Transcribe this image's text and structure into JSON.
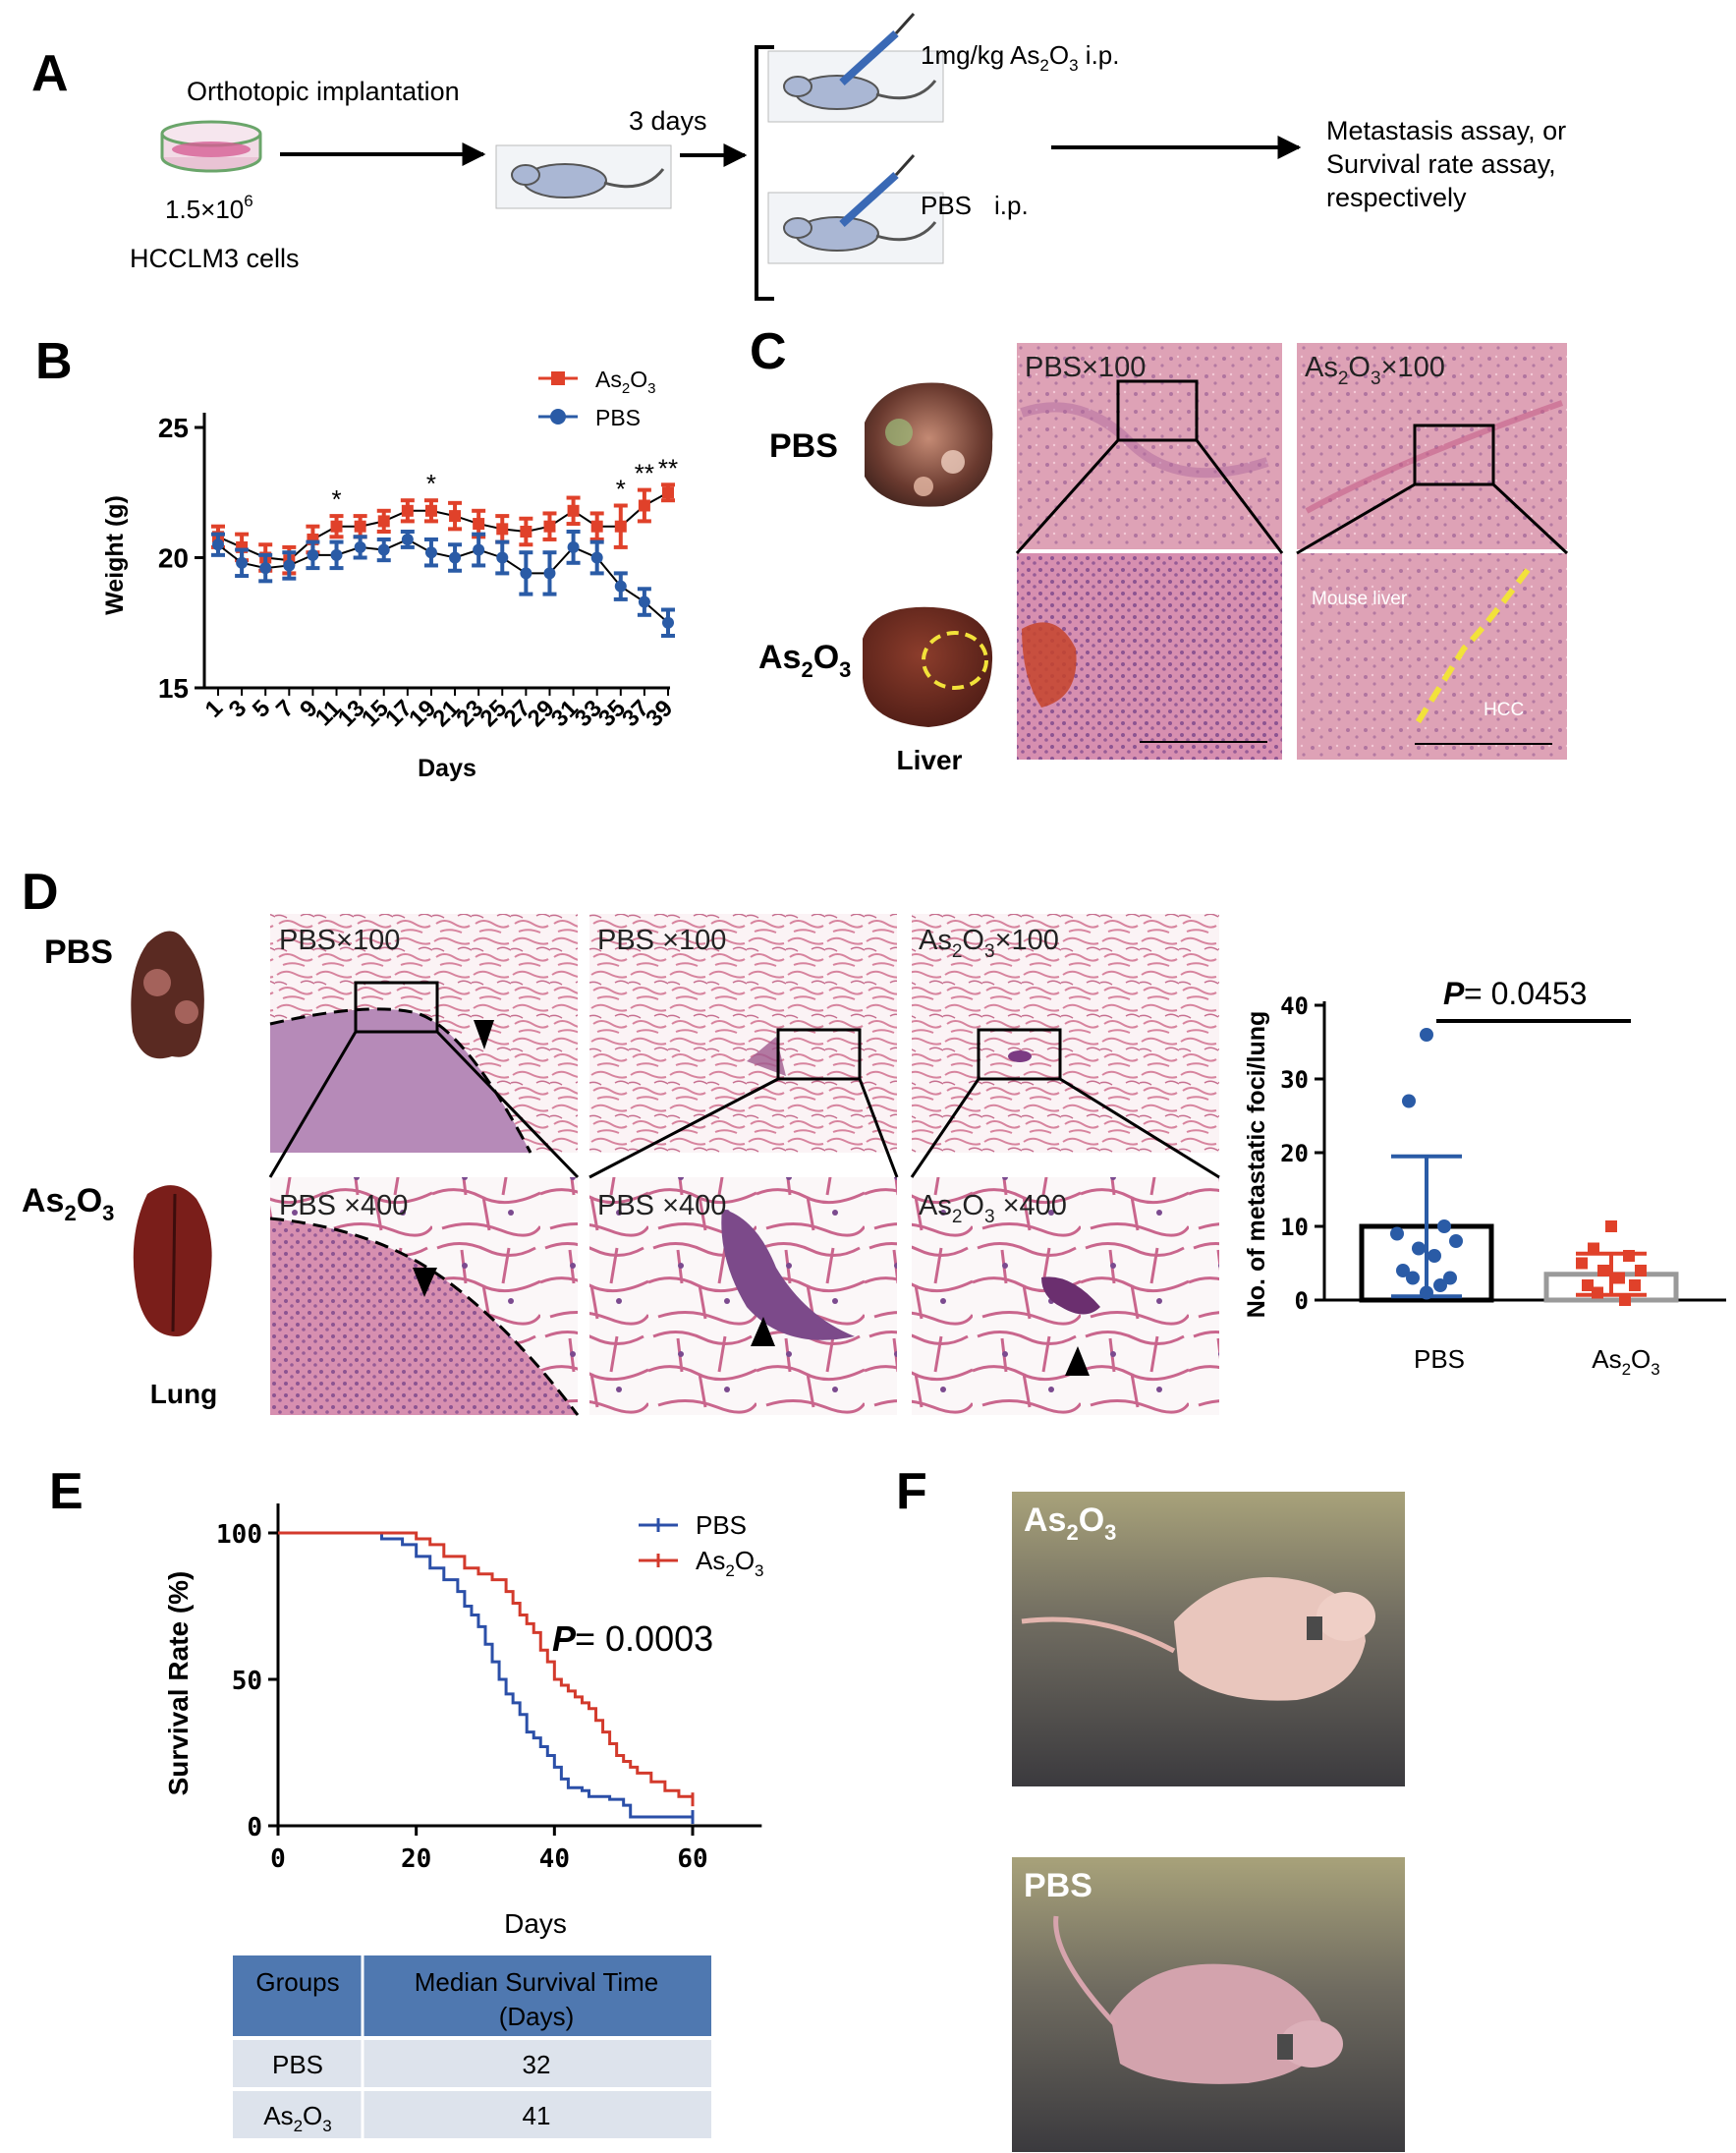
{
  "panel_labels": {
    "a": "A",
    "b": "B",
    "c": "C",
    "d": "D",
    "e": "E",
    "f": "F"
  },
  "panel_a": {
    "implantation": "Orthotopic implantation",
    "cells_count_base": "1.5×10",
    "cells_count_exp": "6",
    "cells_name": "HCCLM3 cells",
    "days": "3 days",
    "treat_dose": "1mg/kg As",
    "treat_route": " i.p.",
    "pbs_label": "PBS",
    "pbs_route": "i.p.",
    "outcome_lines": [
      "Metastasis assay, or",
      "Survival rate assay,",
      "respectively"
    ]
  },
  "panel_b": {
    "legend_as_base": "As",
    "legend_pbs": "PBS",
    "ylabel": "Weight (g)",
    "xlabel": "Days"
  },
  "panel_c": {
    "row_pbs": "PBS",
    "row_as_base": "As",
    "caption": "Liver",
    "label_pbs_100": "PBS×100",
    "label_as_100": "×100",
    "mouse_liver": "Mouse liver",
    "hcc": "HCC"
  },
  "panel_d": {
    "row_pbs": "PBS",
    "row_as_base": "As",
    "caption": "Lung",
    "micro_labels": [
      "PBS×100",
      "PBS ×100",
      "×100",
      "PBS ×400",
      "PBS ×400",
      " ×400"
    ],
    "p_prefix": "P",
    "p_value": " = 0.0453",
    "ylabel": "No. of metastatic foci/lung",
    "cat_pbs": "PBS",
    "cat_as_base": "As"
  },
  "panel_e": {
    "legend_pbs": "PBS",
    "legend_as_base": "As",
    "p_prefix": "P",
    "p_value": " = 0.0003",
    "ylabel": "Survival Rate (%)",
    "xlabel": "Days",
    "table": {
      "headers": [
        "Groups",
        "Median Survival Time",
        "(Days)"
      ],
      "rows": [
        {
          "group": "PBS",
          "value": "32"
        },
        {
          "group": "As",
          "value": "41"
        }
      ]
    }
  },
  "panel_f": {
    "label_as_base": "As",
    "label_pbs": "PBS"
  },
  "colors": {
    "pbs": "#2a5ba6",
    "as2o3": "#e0412a",
    "survival_pbs": "#2b4fa8",
    "survival_as": "#d33a2c",
    "table_header": "#4f78b0",
    "table_row": "#dde3ec"
  },
  "chart_data": [
    {
      "type": "line",
      "panel": "B",
      "title": "",
      "xlabel": "Days",
      "ylabel": "Weight (g)",
      "x": [
        1,
        3,
        5,
        7,
        9,
        11,
        13,
        15,
        17,
        19,
        21,
        23,
        25,
        27,
        29,
        31,
        33,
        35,
        37,
        39
      ],
      "x_tick_labels": [
        "1",
        "3",
        "5",
        "7",
        "9",
        "11",
        "13",
        "15",
        "17",
        "19",
        "21",
        "23",
        "25",
        "27",
        "29",
        "31",
        "33",
        "35",
        "37",
        "39"
      ],
      "ylim": [
        15,
        25
      ],
      "y_ticks": [
        15,
        20,
        25
      ],
      "legend": "top-right",
      "series": [
        {
          "name": "As2O3",
          "values": [
            20.8,
            20.4,
            20.0,
            19.9,
            20.7,
            21.2,
            21.2,
            21.4,
            21.8,
            21.8,
            21.6,
            21.3,
            21.1,
            21.0,
            21.2,
            21.8,
            21.2,
            21.2,
            22.0,
            22.5
          ],
          "error": [
            0.4,
            0.5,
            0.5,
            0.5,
            0.5,
            0.4,
            0.4,
            0.4,
            0.4,
            0.4,
            0.5,
            0.5,
            0.5,
            0.5,
            0.5,
            0.5,
            0.5,
            0.8,
            0.6,
            0.3
          ]
        },
        {
          "name": "PBS",
          "values": [
            20.5,
            19.8,
            19.6,
            19.7,
            20.1,
            20.1,
            20.4,
            20.3,
            20.7,
            20.2,
            20.0,
            20.3,
            20.0,
            19.4,
            19.4,
            20.4,
            20.0,
            18.9,
            18.3,
            17.5
          ],
          "error": [
            0.4,
            0.5,
            0.5,
            0.5,
            0.5,
            0.5,
            0.4,
            0.4,
            0.3,
            0.5,
            0.5,
            0.6,
            0.6,
            0.8,
            0.8,
            0.6,
            0.6,
            0.5,
            0.5,
            0.5
          ]
        }
      ],
      "annotations": [
        {
          "x": 11,
          "text": "*"
        },
        {
          "x": 19,
          "text": "*"
        },
        {
          "x": 35,
          "text": "*"
        },
        {
          "x": 37,
          "text": "**"
        },
        {
          "x": 39,
          "text": "**"
        }
      ]
    },
    {
      "type": "bar",
      "panel": "D",
      "title": "",
      "ylabel": "No. of metastatic foci/lung",
      "categories": [
        "PBS",
        "As2O3"
      ],
      "ylim": [
        0,
        40
      ],
      "y_ticks": [
        0,
        10,
        20,
        30,
        40
      ],
      "values": [
        10,
        3.5
      ],
      "sd": [
        9.5,
        2.8
      ],
      "points": [
        [
          36,
          27,
          10,
          9,
          8,
          7,
          6,
          4,
          3,
          3,
          2,
          1
        ],
        [
          10,
          7,
          6,
          5,
          4,
          4,
          3,
          2,
          2,
          1,
          0
        ]
      ],
      "annotation": "P = 0.0453"
    },
    {
      "type": "line",
      "panel": "E",
      "title": "",
      "xlabel": "Days",
      "ylabel": "Survival Rate (%)",
      "xlim": [
        0,
        70
      ],
      "x_ticks": [
        0,
        20,
        40,
        60
      ],
      "ylim": [
        0,
        100
      ],
      "y_ticks": [
        0,
        50,
        100
      ],
      "legend": "top-right",
      "series": [
        {
          "name": "PBS",
          "points": [
            [
              0,
              100
            ],
            [
              14,
              100
            ],
            [
              15,
              98
            ],
            [
              18,
              96
            ],
            [
              20,
              92
            ],
            [
              22,
              88
            ],
            [
              24,
              84
            ],
            [
              26,
              80
            ],
            [
              27,
              75
            ],
            [
              28,
              72
            ],
            [
              29,
              68
            ],
            [
              30,
              62
            ],
            [
              31,
              56
            ],
            [
              32,
              50
            ],
            [
              33,
              45
            ],
            [
              34,
              42
            ],
            [
              35,
              38
            ],
            [
              36,
              32
            ],
            [
              37,
              30
            ],
            [
              38,
              27
            ],
            [
              39,
              24
            ],
            [
              40,
              20
            ],
            [
              41,
              16
            ],
            [
              42,
              13
            ],
            [
              44,
              12
            ],
            [
              45,
              10
            ],
            [
              48,
              9
            ],
            [
              50,
              7
            ],
            [
              51,
              3
            ],
            [
              60,
              3
            ]
          ]
        },
        {
          "name": "As2O3",
          "points": [
            [
              0,
              100
            ],
            [
              19,
              100
            ],
            [
              20,
              98
            ],
            [
              22,
              96
            ],
            [
              24,
              92
            ],
            [
              27,
              88
            ],
            [
              29,
              86
            ],
            [
              31,
              84
            ],
            [
              33,
              80
            ],
            [
              34,
              76
            ],
            [
              35,
              72
            ],
            [
              36,
              69
            ],
            [
              37,
              66
            ],
            [
              38,
              60
            ],
            [
              39,
              56
            ],
            [
              40,
              50
            ],
            [
              41,
              48
            ],
            [
              42,
              46
            ],
            [
              43,
              44
            ],
            [
              44,
              42
            ],
            [
              45,
              40
            ],
            [
              46,
              36
            ],
            [
              47,
              32
            ],
            [
              48,
              28
            ],
            [
              49,
              24
            ],
            [
              50,
              22
            ],
            [
              51,
              20
            ],
            [
              52,
              18
            ],
            [
              54,
              15
            ],
            [
              56,
              12
            ],
            [
              58,
              10
            ],
            [
              60,
              9
            ]
          ]
        }
      ],
      "annotation": "P = 0.0003"
    }
  ]
}
